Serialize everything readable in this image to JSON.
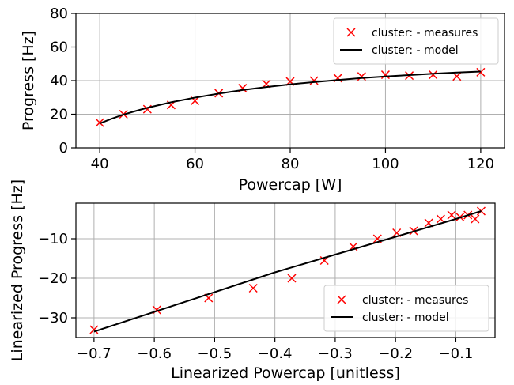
{
  "colors": {
    "measures": "#ff0000",
    "model": "#000000",
    "grid": "#b0b0b0"
  },
  "chart_data": [
    {
      "type": "scatter",
      "xlabel": "Powercap [W]",
      "ylabel": "Progress [Hz]",
      "xlim": [
        35,
        125
      ],
      "ylim": [
        0,
        80
      ],
      "xticks": [
        40,
        60,
        80,
        100,
        120
      ],
      "xtick_labels": [
        "40",
        "60",
        "80",
        "100",
        "120"
      ],
      "yticks": [
        0,
        20,
        40,
        60,
        80
      ],
      "ytick_labels": [
        "0",
        "20",
        "40",
        "60",
        "80"
      ],
      "grid": true,
      "legend_placement": "top-right",
      "series": [
        {
          "name": "cluster:  - measures",
          "kind": "scatter",
          "marker": "x",
          "color": "#ff0000",
          "x": [
            40,
            45,
            50,
            55,
            60,
            65,
            70,
            75,
            80,
            85,
            90,
            95,
            100,
            105,
            110,
            115,
            120
          ],
          "y": [
            15,
            20,
            23,
            25.5,
            28,
            32.5,
            35.5,
            38,
            39.5,
            40,
            41.5,
            42.5,
            43.5,
            43,
            43.5,
            42.5,
            45
          ]
        },
        {
          "name": "cluster:  - model",
          "kind": "line",
          "color": "#000000",
          "x": [
            40,
            42.5,
            45,
            47.5,
            50,
            55,
            60,
            65,
            70,
            75,
            80,
            85,
            90,
            95,
            100,
            105,
            110,
            115,
            120
          ],
          "y": [
            14.5,
            17.3,
            19.8,
            21.9,
            23.8,
            27.1,
            29.9,
            32.3,
            34.4,
            36.2,
            37.8,
            39.1,
            40.4,
            41.5,
            42.5,
            43.3,
            44.1,
            44.8,
            45.4
          ]
        }
      ]
    },
    {
      "type": "scatter",
      "xlabel": "Linearized Powercap [unitless]",
      "ylabel": "Linearized Progress [Hz]",
      "xlim": [
        -0.73,
        -0.035
      ],
      "ylim": [
        -35,
        -1
      ],
      "xticks": [
        -0.7,
        -0.6,
        -0.5,
        -0.4,
        -0.3,
        -0.2,
        -0.1
      ],
      "xtick_labels": [
        "−0.7",
        "−0.6",
        "−0.5",
        "−0.4",
        "−0.3",
        "−0.2",
        "−0.1"
      ],
      "yticks": [
        -30,
        -20,
        -10
      ],
      "ytick_labels": [
        "−30",
        "−20",
        "−10"
      ],
      "grid": true,
      "legend_placement": "bottom-right",
      "series": [
        {
          "name": "cluster:  - measures",
          "kind": "scatter",
          "marker": "x",
          "color": "#ff0000",
          "x": [
            -0.7,
            -0.596,
            -0.51,
            -0.436,
            -0.372,
            -0.318,
            -0.27,
            -0.23,
            -0.198,
            -0.17,
            -0.145,
            -0.125,
            -0.107,
            -0.093,
            -0.08,
            -0.068,
            -0.058
          ],
          "y": [
            -33,
            -28,
            -25,
            -22.5,
            -20,
            -15.5,
            -12,
            -10,
            -8.5,
            -8,
            -6,
            -5,
            -4,
            -4.5,
            -4,
            -5,
            -3
          ]
        },
        {
          "name": "cluster:  - model",
          "kind": "line",
          "color": "#000000",
          "x": [
            -0.7,
            -0.4,
            -0.3,
            -0.2,
            -0.1,
            -0.058
          ],
          "y": [
            -33.5,
            -18.5,
            -14,
            -9.5,
            -5,
            -3
          ]
        }
      ]
    }
  ]
}
